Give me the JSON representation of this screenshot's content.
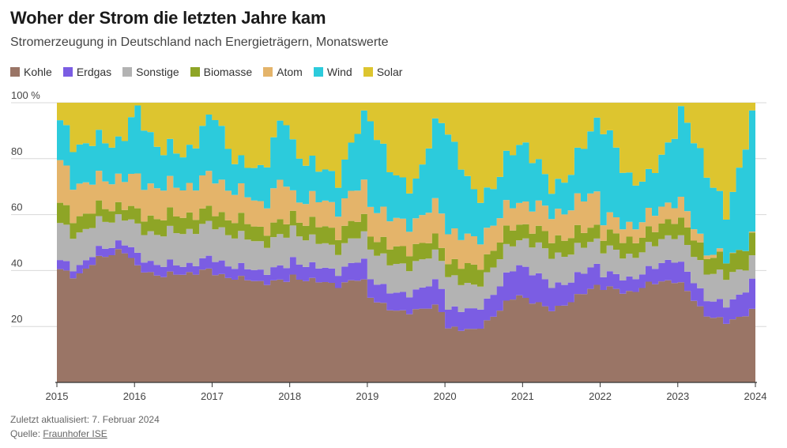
{
  "header": {
    "title": "Woher der Strom die letzten Jahre kam",
    "subtitle": "Stromerzeugung in Deutschland nach Energieträgern, Monatswerte"
  },
  "footer": {
    "updated": "Zuletzt aktualisiert: 7. Februar 2024",
    "source_label": "Quelle: ",
    "source_link": "Fraunhofer ISE"
  },
  "colors": {
    "Kohle": "#9a7566",
    "Erdgas": "#7b5de3",
    "Sonstige": "#b3b3b3",
    "Biomasse": "#8ea526",
    "Atom": "#e4b46a",
    "Wind": "#2ccbdc",
    "Solar": "#ddc52f",
    "grid": "#d8d8d8",
    "axis": "#333333"
  },
  "chart_data": {
    "type": "area",
    "stacked": true,
    "title": "Woher der Strom die letzten Jahre kam",
    "subtitle": "Stromerzeugung in Deutschland nach Energieträgern, Monatswerte",
    "xlabel": "",
    "ylabel": "",
    "unit": "%",
    "ylim": [
      0,
      100
    ],
    "y_ticks": [
      20,
      40,
      60,
      80,
      100
    ],
    "y_tick_labels": [
      "20",
      "40",
      "60",
      "80",
      "100 %"
    ],
    "x_range": [
      2015.0,
      2024.0
    ],
    "x_ticks": [
      2015,
      2016,
      2017,
      2018,
      2019,
      2020,
      2021,
      2022,
      2023,
      2024
    ],
    "x_tick_labels": [
      "2015",
      "2016",
      "2017",
      "2018",
      "2019",
      "2020",
      "2021",
      "2022",
      "2023",
      "2024"
    ],
    "legend_position": "top-left",
    "series_order": [
      "Kohle",
      "Erdgas",
      "Sonstige",
      "Biomasse",
      "Atom",
      "Wind",
      "Solar"
    ],
    "anchor_x": [
      2015.0,
      2015.2,
      2015.5,
      2015.8,
      2016.0,
      2016.3,
      2016.6,
      2016.9,
      2017.0,
      2017.3,
      2017.6,
      2017.9,
      2018.0,
      2018.3,
      2018.6,
      2018.9,
      2019.0,
      2019.3,
      2019.6,
      2019.9,
      2020.0,
      2020.3,
      2020.6,
      2020.9,
      2021.0,
      2021.3,
      2021.6,
      2021.9,
      2022.0,
      2022.3,
      2022.6,
      2022.9,
      2023.0,
      2023.3,
      2023.6,
      2023.9,
      2024.0
    ],
    "anchors_cumulative": [
      [
        40,
        43,
        56,
        63,
        78,
        92,
        100
      ],
      [
        38,
        41,
        53,
        59,
        71,
        85,
        100
      ],
      [
        44,
        47,
        57,
        62,
        72,
        86,
        100
      ],
      [
        48,
        51,
        60,
        64,
        74,
        87,
        100
      ],
      [
        41,
        45,
        55,
        60,
        72,
        97,
        100
      ],
      [
        38,
        42,
        53,
        59,
        70,
        83,
        100
      ],
      [
        39,
        42,
        54,
        60,
        70,
        82,
        100
      ],
      [
        40,
        44,
        56,
        61,
        73,
        92,
        100
      ],
      [
        39,
        44,
        56,
        61,
        73,
        96,
        100
      ],
      [
        37,
        41,
        52,
        58,
        68,
        77,
        100
      ],
      [
        36,
        40,
        50,
        55,
        64,
        77,
        100
      ],
      [
        36,
        41,
        52,
        57,
        72,
        95,
        100
      ],
      [
        38,
        44,
        55,
        60,
        67,
        85,
        100
      ],
      [
        36,
        41,
        50,
        56,
        65,
        76,
        100
      ],
      [
        35,
        40,
        48,
        54,
        63,
        74,
        100
      ],
      [
        37,
        44,
        53,
        59,
        71,
        94,
        100
      ],
      [
        31,
        38,
        49,
        54,
        65,
        96,
        100
      ],
      [
        25,
        31,
        41,
        47,
        57,
        72,
        100
      ],
      [
        26,
        33,
        43,
        49,
        58,
        72,
        100
      ],
      [
        27,
        36,
        46,
        51,
        64,
        96,
        100
      ],
      [
        20,
        27,
        39,
        44,
        55,
        91,
        100
      ],
      [
        18,
        25,
        33,
        40,
        50,
        67,
        100
      ],
      [
        24,
        32,
        42,
        48,
        57,
        70,
        100
      ],
      [
        32,
        43,
        52,
        58,
        66,
        87,
        100
      ],
      [
        30,
        41,
        51,
        56,
        64,
        85,
        100
      ],
      [
        26,
        35,
        46,
        52,
        61,
        70,
        100
      ],
      [
        29,
        36,
        46,
        52,
        62,
        75,
        100
      ],
      [
        35,
        43,
        52,
        57,
        70,
        95,
        100
      ],
      [
        34,
        39,
        48,
        53,
        59,
        92,
        100
      ],
      [
        32,
        37,
        45,
        51,
        56,
        74,
        100
      ],
      [
        35,
        40,
        48,
        53,
        59,
        72,
        100
      ],
      [
        37,
        45,
        54,
        60,
        66,
        90,
        100
      ],
      [
        35,
        42,
        51,
        57,
        64,
        96,
        100
      ],
      [
        25,
        31,
        41,
        47,
        49,
        79,
        100
      ],
      [
        21,
        27,
        37,
        43,
        43,
        58,
        100
      ],
      [
        26,
        36,
        44,
        52,
        52,
        96,
        100
      ],
      [
        24,
        37,
        45,
        52,
        52,
        90,
        100
      ]
    ]
  }
}
